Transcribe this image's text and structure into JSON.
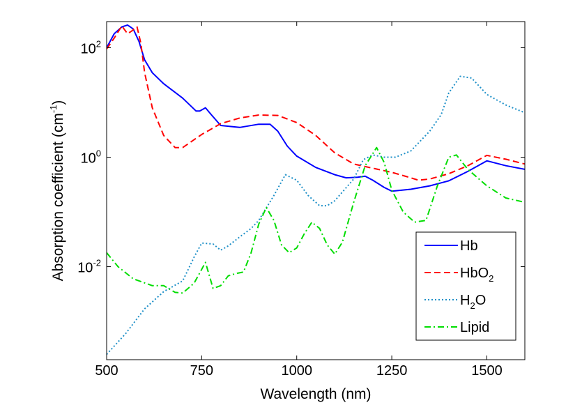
{
  "chart_data": {
    "type": "line",
    "title": "",
    "xlabel": "Wavelength (nm)",
    "ylabel": {
      "main": "Absorption coefficient (cm",
      "sup": "-1",
      "close": ")"
    },
    "xlim": [
      500,
      1600
    ],
    "ylim": [
      0.0002,
      300
    ],
    "yscale": "log",
    "grid": false,
    "legend_position": "lower-right",
    "x_ticks": [
      {
        "value": 500,
        "label": "500"
      },
      {
        "value": 750,
        "label": "750"
      },
      {
        "value": 1000,
        "label": "1000"
      },
      {
        "value": 1250,
        "label": "1250"
      },
      {
        "value": 1500,
        "label": "1500"
      }
    ],
    "y_ticks": [
      {
        "value": 100,
        "base": "10",
        "exp": "2"
      },
      {
        "value": 1,
        "base": "10",
        "exp": "0"
      },
      {
        "value": 0.01,
        "base": "10",
        "exp": "-2"
      }
    ],
    "series": [
      {
        "name": "Hb",
        "label_parts": [
          {
            "t": "Hb"
          }
        ],
        "color": "#0000ff",
        "dash": "solid",
        "points": [
          [
            500,
            100
          ],
          [
            520,
            180
          ],
          [
            540,
            240
          ],
          [
            555,
            260
          ],
          [
            570,
            220
          ],
          [
            585,
            130
          ],
          [
            600,
            60
          ],
          [
            620,
            35
          ],
          [
            650,
            22
          ],
          [
            700,
            12
          ],
          [
            735,
            7
          ],
          [
            745,
            7
          ],
          [
            760,
            8
          ],
          [
            775,
            6
          ],
          [
            800,
            3.8
          ],
          [
            850,
            3.5
          ],
          [
            900,
            4
          ],
          [
            930,
            4
          ],
          [
            950,
            3
          ],
          [
            975,
            1.6
          ],
          [
            1000,
            1.05
          ],
          [
            1050,
            0.65
          ],
          [
            1100,
            0.48
          ],
          [
            1130,
            0.42
          ],
          [
            1160,
            0.43
          ],
          [
            1180,
            0.45
          ],
          [
            1200,
            0.38
          ],
          [
            1230,
            0.28
          ],
          [
            1250,
            0.24
          ],
          [
            1300,
            0.26
          ],
          [
            1350,
            0.3
          ],
          [
            1400,
            0.37
          ],
          [
            1450,
            0.55
          ],
          [
            1500,
            0.86
          ],
          [
            1550,
            0.7
          ],
          [
            1600,
            0.6
          ]
        ]
      },
      {
        "name": "HbO2",
        "label_parts": [
          {
            "t": "HbO"
          },
          {
            "t": "2",
            "sub": true
          }
        ],
        "color": "#ff0000",
        "dash": "dashed",
        "points": [
          [
            500,
            95
          ],
          [
            520,
            150
          ],
          [
            540,
            250
          ],
          [
            555,
            180
          ],
          [
            565,
            200
          ],
          [
            580,
            240
          ],
          [
            590,
            120
          ],
          [
            600,
            35
          ],
          [
            620,
            8
          ],
          [
            650,
            2.5
          ],
          [
            680,
            1.5
          ],
          [
            700,
            1.5
          ],
          [
            750,
            2.6
          ],
          [
            800,
            4.1
          ],
          [
            850,
            5.2
          ],
          [
            900,
            5.9
          ],
          [
            950,
            5.8
          ],
          [
            1000,
            4.3
          ],
          [
            1050,
            2.5
          ],
          [
            1100,
            1.2
          ],
          [
            1150,
            0.75
          ],
          [
            1200,
            0.63
          ],
          [
            1250,
            0.53
          ],
          [
            1300,
            0.42
          ],
          [
            1320,
            0.38
          ],
          [
            1350,
            0.4
          ],
          [
            1400,
            0.5
          ],
          [
            1450,
            0.7
          ],
          [
            1500,
            1.08
          ],
          [
            1550,
            0.92
          ],
          [
            1600,
            0.75
          ]
        ]
      },
      {
        "name": "H2O",
        "label_parts": [
          {
            "t": "H"
          },
          {
            "t": "2",
            "sub": true
          },
          {
            "t": "O"
          }
        ],
        "color": "#1e90c8",
        "dash": "dotted",
        "points": [
          [
            500,
            0.00025
          ],
          [
            550,
            0.0006
          ],
          [
            600,
            0.0017
          ],
          [
            650,
            0.0035
          ],
          [
            700,
            0.0055
          ],
          [
            730,
            0.015
          ],
          [
            750,
            0.027
          ],
          [
            780,
            0.026
          ],
          [
            800,
            0.02
          ],
          [
            820,
            0.024
          ],
          [
            850,
            0.035
          ],
          [
            880,
            0.05
          ],
          [
            900,
            0.07
          ],
          [
            940,
            0.2
          ],
          [
            970,
            0.48
          ],
          [
            1000,
            0.38
          ],
          [
            1030,
            0.2
          ],
          [
            1060,
            0.13
          ],
          [
            1080,
            0.13
          ],
          [
            1100,
            0.16
          ],
          [
            1150,
            0.4
          ],
          [
            1175,
            0.9
          ],
          [
            1200,
            1.1
          ],
          [
            1230,
            1.0
          ],
          [
            1260,
            1.0
          ],
          [
            1300,
            1.3
          ],
          [
            1350,
            3
          ],
          [
            1380,
            6
          ],
          [
            1400,
            15
          ],
          [
            1430,
            30
          ],
          [
            1460,
            28
          ],
          [
            1500,
            14
          ],
          [
            1550,
            9
          ],
          [
            1600,
            6.5
          ]
        ]
      },
      {
        "name": "Lipid",
        "label_parts": [
          {
            "t": "Lipid"
          }
        ],
        "color": "#00dd00",
        "dash": "dashdot",
        "points": [
          [
            500,
            0.018
          ],
          [
            530,
            0.01
          ],
          [
            570,
            0.006
          ],
          [
            620,
            0.0045
          ],
          [
            650,
            0.0045
          ],
          [
            680,
            0.0034
          ],
          [
            700,
            0.0033
          ],
          [
            730,
            0.005
          ],
          [
            760,
            0.012
          ],
          [
            780,
            0.004
          ],
          [
            800,
            0.0045
          ],
          [
            820,
            0.0068
          ],
          [
            840,
            0.0075
          ],
          [
            860,
            0.008
          ],
          [
            880,
            0.018
          ],
          [
            900,
            0.06
          ],
          [
            920,
            0.12
          ],
          [
            940,
            0.07
          ],
          [
            960,
            0.025
          ],
          [
            980,
            0.018
          ],
          [
            1000,
            0.022
          ],
          [
            1020,
            0.04
          ],
          [
            1040,
            0.065
          ],
          [
            1060,
            0.05
          ],
          [
            1080,
            0.025
          ],
          [
            1100,
            0.017
          ],
          [
            1120,
            0.028
          ],
          [
            1150,
            0.15
          ],
          [
            1180,
            0.7
          ],
          [
            1210,
            1.5
          ],
          [
            1230,
            0.8
          ],
          [
            1250,
            0.25
          ],
          [
            1280,
            0.1
          ],
          [
            1310,
            0.065
          ],
          [
            1340,
            0.07
          ],
          [
            1370,
            0.3
          ],
          [
            1400,
            1.0
          ],
          [
            1420,
            1.1
          ],
          [
            1450,
            0.6
          ],
          [
            1500,
            0.3
          ],
          [
            1550,
            0.18
          ],
          [
            1600,
            0.15
          ]
        ]
      }
    ]
  }
}
